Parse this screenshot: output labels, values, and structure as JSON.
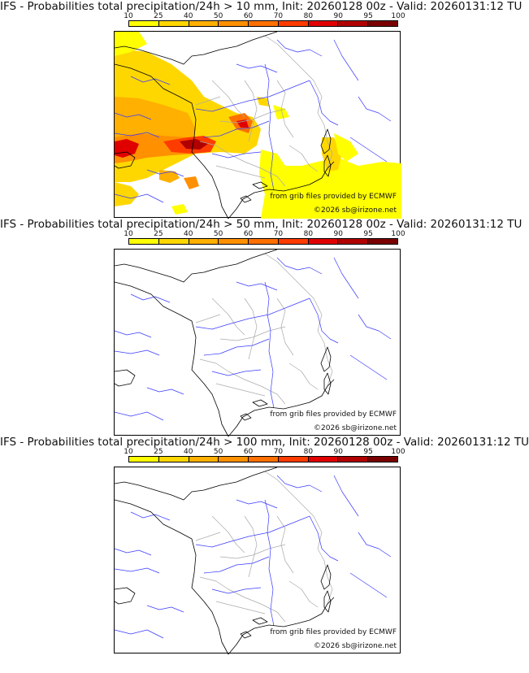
{
  "panels": [
    {
      "title": "IFS - Probabilities total precipitation/24h > 10 mm, Init: 20260128 00z - Valid: 20260131:12 TU",
      "credit": "from grib files provided by ECMWF",
      "copyright": "©2026 sb@irizone.net",
      "probability_field": "high"
    },
    {
      "title": "IFS - Probabilities total precipitation/24h > 50 mm, Init: 20260128 00z - Valid: 20260131:12 TU",
      "credit": "from grib files provided by ECMWF",
      "copyright": "©2026 sb@irizone.net",
      "probability_field": "none"
    },
    {
      "title": "IFS - Probabilities total precipitation/24h > 100 mm, Init: 20260128 00z - Valid: 20260131:12 TU",
      "credit": "from grib files provided by ECMWF",
      "copyright": "©2026 sb@irizone.net",
      "probability_field": "none"
    }
  ],
  "colorbar": {
    "ticks": [
      "10",
      "25",
      "40",
      "50",
      "60",
      "70",
      "80",
      "90",
      "95",
      "100"
    ],
    "colors": [
      "#ffff00",
      "#ffd700",
      "#ffb000",
      "#ff9000",
      "#ff7000",
      "#ff3c00",
      "#e00000",
      "#b00000",
      "#7a0000"
    ]
  },
  "colors": {
    "coast": "#000000",
    "rivers": "#3a3aff",
    "borders": "#aaaaaa"
  }
}
